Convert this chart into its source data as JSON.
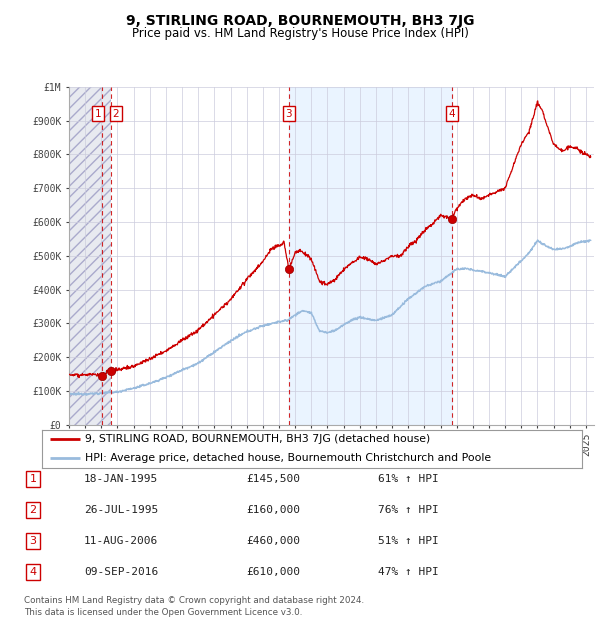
{
  "title": "9, STIRLING ROAD, BOURNEMOUTH, BH3 7JG",
  "subtitle": "Price paid vs. HM Land Registry's House Price Index (HPI)",
  "title_fontsize": 10,
  "subtitle_fontsize": 8.5,
  "ylim": [
    0,
    1000000
  ],
  "yticks": [
    0,
    100000,
    200000,
    300000,
    400000,
    500000,
    600000,
    700000,
    800000,
    900000,
    1000000
  ],
  "ytick_labels": [
    "£0",
    "£100K",
    "£200K",
    "£300K",
    "£400K",
    "£500K",
    "£600K",
    "£700K",
    "£800K",
    "£900K",
    "£1M"
  ],
  "xlim_start": 1993.0,
  "xlim_end": 2025.5,
  "sale_dates": [
    1995.04,
    1995.57,
    2006.61,
    2016.69
  ],
  "sale_prices": [
    145500,
    160000,
    460000,
    610000
  ],
  "sale_labels": [
    "1",
    "2",
    "3",
    "4"
  ],
  "red_line_color": "#cc0000",
  "hpi_line_color": "#99bbdd",
  "sale_marker_color": "#cc0000",
  "dashed_line_color": "#cc0000",
  "shaded_bg_color": "#ddeeff",
  "hatch_color": "#ccccdd",
  "legend_line1": "9, STIRLING ROAD, BOURNEMOUTH, BH3 7JG (detached house)",
  "legend_line2": "HPI: Average price, detached house, Bournemouth Christchurch and Poole",
  "table_data": [
    [
      "1",
      "18-JAN-1995",
      "£145,500",
      "61% ↑ HPI"
    ],
    [
      "2",
      "26-JUL-1995",
      "£160,000",
      "76% ↑ HPI"
    ],
    [
      "3",
      "11-AUG-2006",
      "£460,000",
      "51% ↑ HPI"
    ],
    [
      "4",
      "09-SEP-2016",
      "£610,000",
      "47% ↑ HPI"
    ]
  ],
  "footer": "Contains HM Land Registry data © Crown copyright and database right 2024.\nThis data is licensed under the Open Government Licence v3.0.",
  "grid_color": "#ccccdd",
  "axis_color": "#aaaaaa",
  "hpi_anchors_x": [
    1993.0,
    1994.0,
    1995.0,
    1996.0,
    1997.0,
    1998.0,
    1999.0,
    2000.0,
    2001.0,
    2002.0,
    2003.0,
    2004.0,
    2005.0,
    2006.0,
    2006.5,
    2007.0,
    2007.5,
    2008.0,
    2008.5,
    2009.0,
    2009.5,
    2010.0,
    2010.5,
    2011.0,
    2012.0,
    2013.0,
    2014.0,
    2015.0,
    2016.0,
    2017.0,
    2017.5,
    2018.0,
    2019.0,
    2020.0,
    2021.0,
    2021.5,
    2022.0,
    2022.5,
    2023.0,
    2023.5,
    2024.0,
    2024.5,
    2025.3
  ],
  "hpi_anchors_y": [
    90000,
    91000,
    93000,
    97000,
    108000,
    122000,
    140000,
    162000,
    182000,
    215000,
    248000,
    275000,
    293000,
    305000,
    308000,
    325000,
    338000,
    330000,
    278000,
    272000,
    280000,
    295000,
    310000,
    318000,
    308000,
    325000,
    372000,
    408000,
    425000,
    460000,
    462000,
    458000,
    450000,
    438000,
    486000,
    510000,
    545000,
    530000,
    518000,
    520000,
    528000,
    540000,
    545000
  ],
  "red_anchors_x": [
    1993.0,
    1994.5,
    1995.04,
    1995.57,
    1996.0,
    1997.0,
    1998.0,
    1999.0,
    2000.0,
    2001.0,
    2002.0,
    2003.0,
    2004.0,
    2005.0,
    2005.5,
    2006.0,
    2006.3,
    2006.61,
    2007.0,
    2007.3,
    2007.5,
    2008.0,
    2008.5,
    2009.0,
    2009.5,
    2010.0,
    2010.5,
    2011.0,
    2011.5,
    2012.0,
    2012.5,
    2013.0,
    2013.5,
    2014.0,
    2014.5,
    2015.0,
    2015.5,
    2016.0,
    2016.69,
    2017.0,
    2017.5,
    2018.0,
    2018.5,
    2019.0,
    2020.0,
    2021.0,
    2021.5,
    2022.0,
    2022.3,
    2022.7,
    2023.0,
    2023.5,
    2024.0,
    2024.5,
    2025.3
  ],
  "red_anchors_y": [
    148000,
    148000,
    145500,
    160000,
    163000,
    173000,
    195000,
    218000,
    250000,
    280000,
    325000,
    370000,
    430000,
    482000,
    520000,
    530000,
    540000,
    460000,
    510000,
    515000,
    510000,
    490000,
    425000,
    415000,
    430000,
    460000,
    478000,
    495000,
    490000,
    475000,
    485000,
    500000,
    498000,
    528000,
    545000,
    575000,
    595000,
    620000,
    610000,
    640000,
    668000,
    680000,
    668000,
    680000,
    700000,
    830000,
    870000,
    955000,
    930000,
    870000,
    830000,
    810000,
    825000,
    815000,
    790000
  ]
}
